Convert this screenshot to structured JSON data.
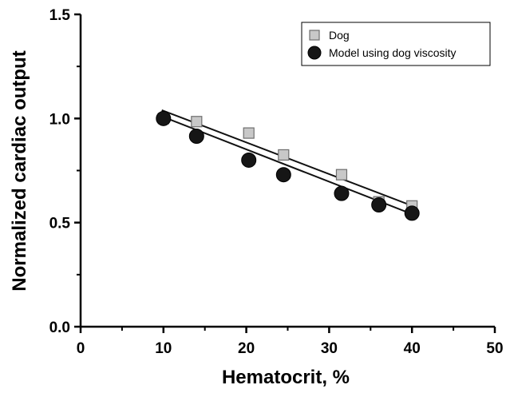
{
  "chart_data": {
    "type": "scatter",
    "title": "",
    "xlabel": "Hematocrit, %",
    "ylabel": "Normalized cardiac output",
    "xlim": [
      0,
      50
    ],
    "ylim": [
      0,
      1.5
    ],
    "xticks": [
      0,
      10,
      20,
      30,
      40,
      50
    ],
    "xtick_labels": [
      "0",
      "10",
      "20",
      "30",
      "40",
      "50"
    ],
    "yticks": [
      0,
      0.5,
      1.0,
      1.5
    ],
    "ytick_labels": [
      "0.0",
      "0.5",
      "1.0",
      "1.5"
    ],
    "x_minor_ticks": [
      5,
      15,
      25,
      35,
      45
    ],
    "y_minor_ticks": [
      0.25,
      0.75,
      1.25
    ],
    "grid": false,
    "legend_position": "top-right",
    "series": [
      {
        "name": "Dog",
        "marker": "square",
        "color": "#c8c8c8",
        "edge_color": "#6e6e6e",
        "x": [
          10,
          14,
          20.3,
          24.5,
          31.5,
          36,
          40
        ],
        "y": [
          1.0,
          0.985,
          0.93,
          0.825,
          0.73,
          0.6,
          0.58
        ],
        "fit_line": {
          "x": [
            9.8,
            40.2
          ],
          "y": [
            1.04,
            0.578
          ]
        }
      },
      {
        "name": "Model using dog viscosity",
        "marker": "circle",
        "color": "#161616",
        "edge_color": "#000000",
        "x": [
          10,
          14,
          20.3,
          24.5,
          31.5,
          36,
          40
        ],
        "y": [
          1.0,
          0.915,
          0.8,
          0.73,
          0.64,
          0.585,
          0.545
        ],
        "fit_line": {
          "x": [
            9.8,
            40.2
          ],
          "y": [
            1.01,
            0.538
          ]
        }
      }
    ]
  }
}
